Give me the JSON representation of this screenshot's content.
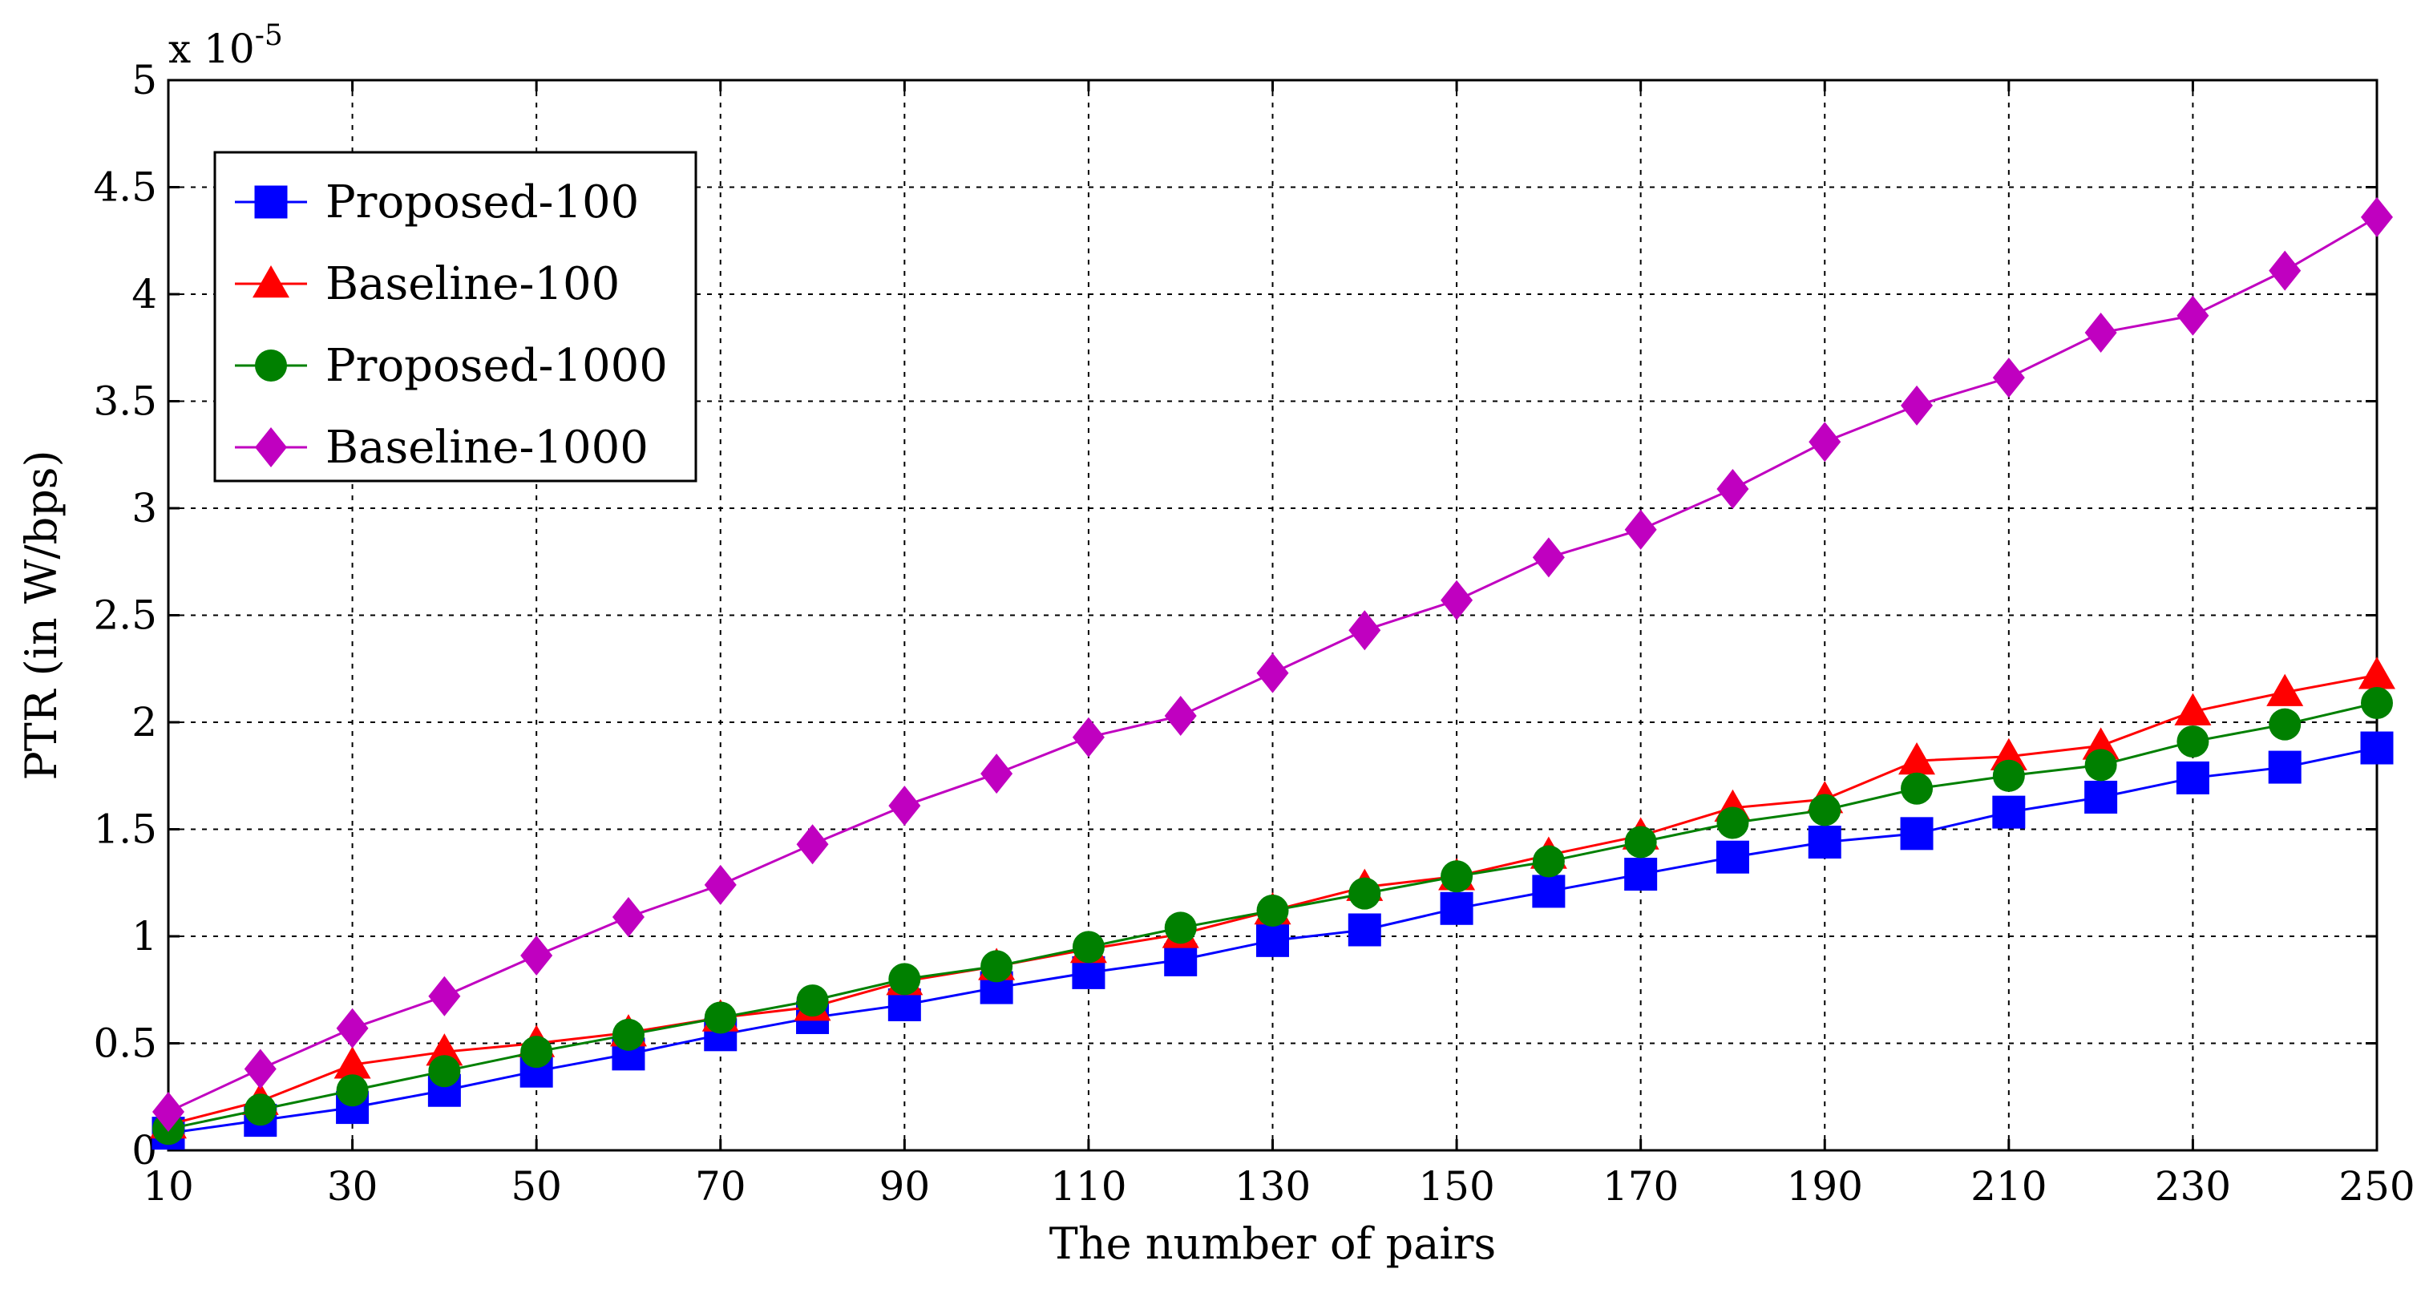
{
  "chart_data": {
    "type": "line",
    "title": "",
    "xlabel": "The number of pairs",
    "ylabel": "PTR (in W/bps)",
    "y_multiplier_label": "x 10",
    "y_multiplier_exponent": "-5",
    "xlim": [
      10,
      250
    ],
    "ylim": [
      0,
      5
    ],
    "grid": true,
    "legend_position": "top-left",
    "x_ticks": [
      10,
      30,
      50,
      70,
      90,
      110,
      130,
      150,
      170,
      190,
      210,
      230,
      250
    ],
    "y_ticks": [
      0,
      0.5,
      1,
      1.5,
      2,
      2.5,
      3,
      3.5,
      4,
      4.5,
      5
    ],
    "y_tick_labels": [
      "0",
      "0.5",
      "1",
      "1.5",
      "2",
      "2.5",
      "3",
      "3.5",
      "4",
      "4.5",
      "5"
    ],
    "x": [
      10,
      20,
      30,
      40,
      50,
      60,
      70,
      80,
      90,
      100,
      110,
      120,
      130,
      140,
      150,
      160,
      170,
      180,
      190,
      200,
      210,
      220,
      230,
      240,
      250
    ],
    "series": [
      {
        "name": "Proposed-100",
        "color": "#0000ff",
        "marker": "square",
        "values": [
          0.08,
          0.14,
          0.2,
          0.28,
          0.37,
          0.45,
          0.54,
          0.62,
          0.68,
          0.76,
          0.83,
          0.89,
          0.98,
          1.03,
          1.13,
          1.21,
          1.29,
          1.37,
          1.44,
          1.48,
          1.58,
          1.65,
          1.74,
          1.79,
          1.88
        ]
      },
      {
        "name": "Baseline-100",
        "color": "#ff0000",
        "marker": "triangle",
        "values": [
          0.12,
          0.23,
          0.4,
          0.46,
          0.5,
          0.55,
          0.62,
          0.67,
          0.79,
          0.86,
          0.94,
          1.01,
          1.12,
          1.23,
          1.28,
          1.38,
          1.47,
          1.6,
          1.64,
          1.82,
          1.84,
          1.89,
          2.05,
          2.14,
          2.22
        ]
      },
      {
        "name": "Proposed-1000",
        "color": "#008000",
        "marker": "circle",
        "values": [
          0.1,
          0.19,
          0.28,
          0.37,
          0.46,
          0.54,
          0.62,
          0.7,
          0.8,
          0.86,
          0.95,
          1.04,
          1.12,
          1.2,
          1.28,
          1.35,
          1.44,
          1.53,
          1.59,
          1.69,
          1.75,
          1.8,
          1.91,
          1.99,
          2.09
        ]
      },
      {
        "name": "Baseline-1000",
        "color": "#c000c0",
        "marker": "diamond",
        "values": [
          0.18,
          0.38,
          0.57,
          0.72,
          0.91,
          1.09,
          1.24,
          1.43,
          1.61,
          1.76,
          1.93,
          2.03,
          2.23,
          2.43,
          2.57,
          2.77,
          2.9,
          3.09,
          3.31,
          3.48,
          3.61,
          3.82,
          3.9,
          4.11,
          4.36
        ]
      }
    ]
  }
}
